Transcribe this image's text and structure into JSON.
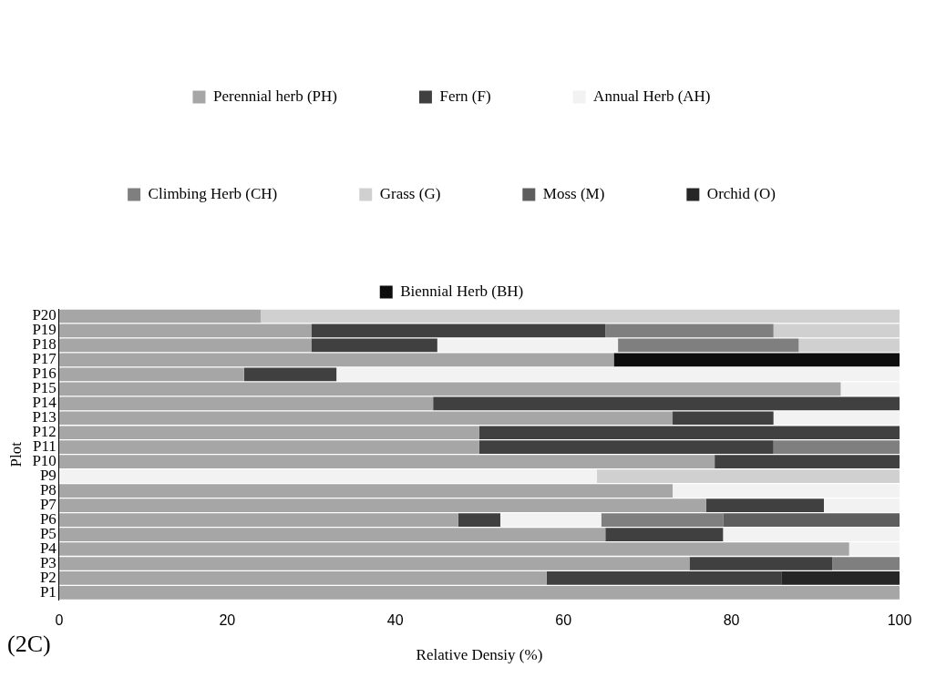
{
  "chart_data": {
    "type": "bar",
    "orientation": "horizontal",
    "stacked": true,
    "xlabel": "Relative Densiy (%)",
    "ylabel": "Plot",
    "xlim": [
      0,
      100
    ],
    "xticks": [
      0,
      20,
      40,
      60,
      80,
      100
    ],
    "grid": false,
    "legend": "top",
    "annotations": [
      "(2C)"
    ],
    "categories": [
      "P20",
      "P19",
      "P18",
      "P17",
      "P16",
      "P15",
      "P14",
      "P13",
      "P12",
      "P11",
      "P10",
      "P9",
      "P8",
      "P7",
      "P6",
      "P5",
      "P4",
      "P3",
      "P2",
      "P1"
    ],
    "series": [
      {
        "name": "Perennial herb (PH)",
        "color": "#a6a6a6",
        "values": [
          24,
          30,
          30,
          66,
          22,
          93,
          44.5,
          73,
          50,
          50,
          78,
          null,
          73,
          77,
          47.5,
          65,
          94,
          75,
          58,
          100
        ]
      },
      {
        "name": "Fern (F)",
        "color": "#404040",
        "values": [
          null,
          35,
          15,
          null,
          11,
          null,
          55.5,
          12,
          50,
          35,
          22,
          null,
          null,
          14,
          5,
          14,
          null,
          17,
          28,
          null
        ]
      },
      {
        "name": "Annual Herb (AH)",
        "color": "#f2f2f2",
        "values": [
          null,
          null,
          21.5,
          null,
          67,
          7,
          null,
          15,
          null,
          null,
          null,
          64,
          27,
          9,
          12,
          21,
          6,
          null,
          null,
          null
        ]
      },
      {
        "name": "Climbing Herb (CH)",
        "color": "#7f7f7f",
        "values": [
          null,
          20,
          21.5,
          null,
          null,
          null,
          null,
          null,
          null,
          15,
          null,
          null,
          null,
          null,
          14.5,
          null,
          null,
          8,
          null,
          null
        ]
      },
      {
        "name": "Grass (G)",
        "color": "#d0d0d0",
        "values": [
          76,
          15,
          12,
          null,
          null,
          null,
          null,
          null,
          null,
          null,
          null,
          36,
          null,
          null,
          null,
          null,
          null,
          null,
          null,
          null
        ]
      },
      {
        "name": "Moss (M)",
        "color": "#5e5e5e",
        "values": [
          null,
          null,
          null,
          null,
          null,
          null,
          null,
          null,
          null,
          null,
          null,
          null,
          null,
          null,
          21,
          null,
          null,
          null,
          null,
          null
        ]
      },
      {
        "name": "Orchid (O)",
        "color": "#262626",
        "values": [
          null,
          null,
          null,
          null,
          null,
          null,
          null,
          null,
          null,
          null,
          null,
          null,
          null,
          null,
          null,
          null,
          null,
          null,
          14,
          null
        ]
      },
      {
        "name": "Biennial Herb (BH)",
        "color": "#0d0d0d",
        "values": [
          null,
          null,
          null,
          34,
          null,
          null,
          null,
          null,
          null,
          null,
          null,
          null,
          null,
          null,
          null,
          null,
          null,
          null,
          null,
          null
        ]
      }
    ]
  }
}
